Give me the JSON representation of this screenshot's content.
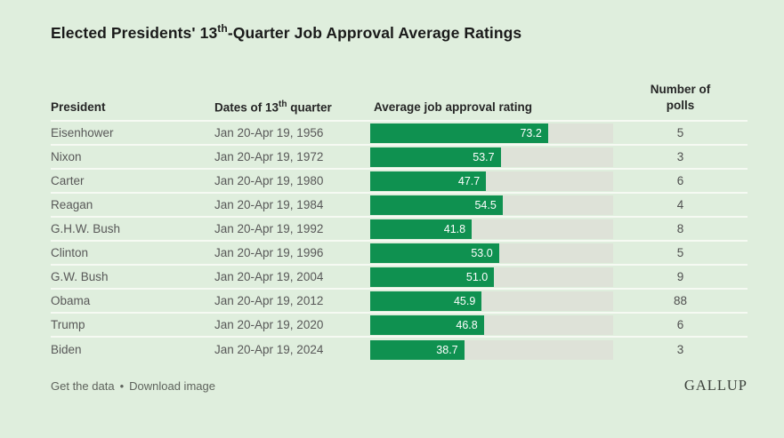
{
  "title": {
    "prefix": "Elected Presidents' 13",
    "sup": "th",
    "suffix": "-Quarter Job Approval Average Ratings"
  },
  "columns": {
    "president": "President",
    "dates_prefix": "Dates of 13",
    "dates_sup": "th",
    "dates_suffix": " quarter",
    "rating": "Average job approval rating",
    "polls_line1": "Number of",
    "polls_line2": "polls"
  },
  "rows": [
    {
      "president": "Eisenhower",
      "dates": "Jan 20-Apr 19, 1956",
      "value": 73.2,
      "value_label": "73.2",
      "polls": "5"
    },
    {
      "president": "Nixon",
      "dates": "Jan 20-Apr 19, 1972",
      "value": 53.7,
      "value_label": "53.7",
      "polls": "3"
    },
    {
      "president": "Carter",
      "dates": "Jan 20-Apr 19, 1980",
      "value": 47.7,
      "value_label": "47.7",
      "polls": "6"
    },
    {
      "president": "Reagan",
      "dates": "Jan 20-Apr 19, 1984",
      "value": 54.5,
      "value_label": "54.5",
      "polls": "4"
    },
    {
      "president": "G.H.W. Bush",
      "dates": "Jan 20-Apr 19, 1992",
      "value": 41.8,
      "value_label": "41.8",
      "polls": "8"
    },
    {
      "president": "Clinton",
      "dates": "Jan 20-Apr 19, 1996",
      "value": 53.0,
      "value_label": "53.0",
      "polls": "5"
    },
    {
      "president": "G.W. Bush",
      "dates": "Jan 20-Apr 19, 2004",
      "value": 51.0,
      "value_label": "51.0",
      "polls": "9"
    },
    {
      "president": "Obama",
      "dates": "Jan 20-Apr 19, 2012",
      "value": 45.9,
      "value_label": "45.9",
      "polls": "88"
    },
    {
      "president": "Trump",
      "dates": "Jan 20-Apr 19, 2020",
      "value": 46.8,
      "value_label": "46.8",
      "polls": "6"
    },
    {
      "president": "Biden",
      "dates": "Jan 20-Apr 19, 2024",
      "value": 38.7,
      "value_label": "38.7",
      "polls": "3"
    }
  ],
  "footer": {
    "get_data": "Get the data",
    "separator": "•",
    "download": "Download image",
    "brand": "GALLUP"
  },
  "colors": {
    "background": "#dfeedd",
    "bar_fill": "#0f9150",
    "bar_track": "#dee2d8",
    "separator": "#f6faf3",
    "title_text": "#1a1a1a",
    "body_text": "#585858"
  },
  "chart_data": {
    "type": "bar",
    "orientation": "horizontal",
    "title": "Elected Presidents' 13th-Quarter Job Approval Average Ratings",
    "categories": [
      "Eisenhower",
      "Nixon",
      "Carter",
      "Reagan",
      "G.H.W. Bush",
      "Clinton",
      "G.W. Bush",
      "Obama",
      "Trump",
      "Biden"
    ],
    "values": [
      73.2,
      53.7,
      47.7,
      54.5,
      41.8,
      53.0,
      51.0,
      45.9,
      46.8,
      38.7
    ],
    "dates_of_13th_quarter": [
      "Jan 20-Apr 19, 1956",
      "Jan 20-Apr 19, 1972",
      "Jan 20-Apr 19, 1980",
      "Jan 20-Apr 19, 1984",
      "Jan 20-Apr 19, 1992",
      "Jan 20-Apr 19, 1996",
      "Jan 20-Apr 19, 2004",
      "Jan 20-Apr 19, 2012",
      "Jan 20-Apr 19, 2020",
      "Jan 20-Apr 19, 2024"
    ],
    "number_of_polls": [
      5,
      3,
      6,
      4,
      8,
      5,
      9,
      88,
      6,
      3
    ],
    "xlabel": "Average job approval rating",
    "ylabel": "President",
    "xlim": [
      0,
      100
    ],
    "grid": false,
    "legend": false,
    "source": "GALLUP"
  }
}
